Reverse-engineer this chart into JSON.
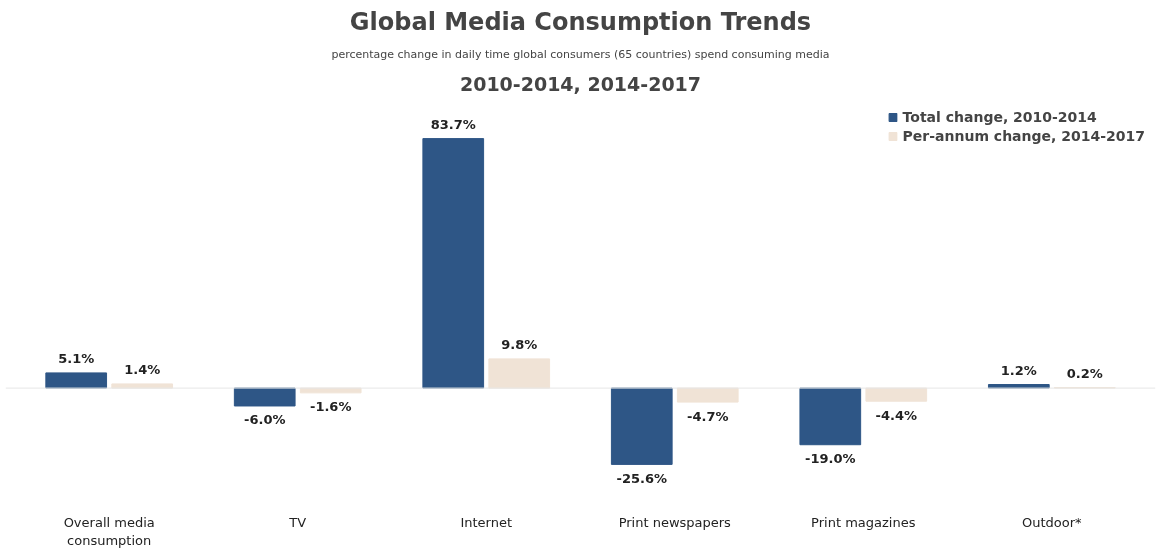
{
  "chart_data": {
    "type": "bar",
    "title": "Global Media Consumption Trends",
    "subtitle": "percentage change in daily time global consumers (65 countries) spend consuming media",
    "annotations": [
      "2010-2014, 2014-2017"
    ],
    "categories": [
      "Overall media consumption",
      "TV",
      "Internet",
      "Print newspapers",
      "Print magazines",
      "Outdoor*"
    ],
    "series": [
      {
        "name": "Total change, 2010-2014",
        "color": "#2e5686",
        "values": [
          5.1,
          -6.0,
          83.7,
          -25.6,
          -19.0,
          1.2
        ],
        "value_labels": [
          "5.1%",
          "-6.0%",
          "83.7%",
          "-25.6%",
          "-19.0%",
          "1.2%"
        ]
      },
      {
        "name": "Per-annum change, 2014-2017",
        "color": "#f0e3d6",
        "values": [
          1.4,
          -1.6,
          9.8,
          -4.7,
          -4.4,
          0.2
        ],
        "value_labels": [
          "1.4%",
          "-1.6%",
          "9.8%",
          "-4.7%",
          "-4.4%",
          "0.2%"
        ]
      }
    ],
    "legend": "top right",
    "grid": false
  }
}
